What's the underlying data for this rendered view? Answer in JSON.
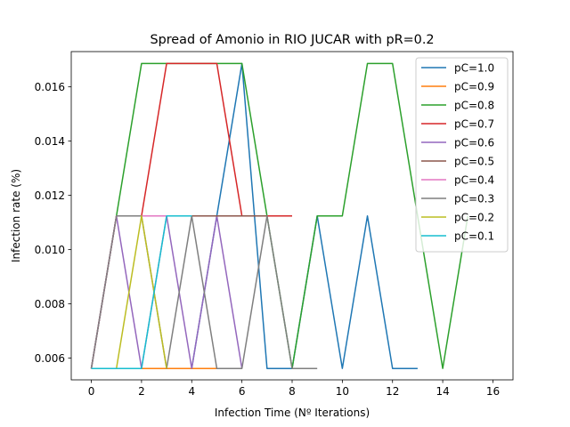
{
  "chart_data": {
    "type": "line",
    "title": "Spread of Amonio in RIO JUCAR with pR=0.2",
    "xlabel": "Infection Time (Nº Iterations)",
    "ylabel": "Infection rate (%)",
    "xlim": [
      -0.8,
      16.8
    ],
    "ylim": [
      0.0052,
      0.0173
    ],
    "xticks": [
      0,
      2,
      4,
      6,
      8,
      10,
      12,
      14,
      16
    ],
    "yticks": [
      0.006,
      0.008,
      0.01,
      0.012,
      0.014,
      0.016
    ],
    "ytick_labels": [
      "0.006",
      "0.008",
      "0.010",
      "0.012",
      "0.014",
      "0.016"
    ],
    "grid": false,
    "legend_position": "upper-right",
    "series": [
      {
        "name": "pC=1.0",
        "color": "#1f77b4",
        "x": [
          0,
          1,
          2,
          3,
          4,
          5,
          6,
          7,
          8,
          9,
          10,
          11,
          12,
          13
        ],
        "y": [
          0.00562,
          0.00562,
          0.00562,
          0.00562,
          0.00562,
          0.01124,
          0.01686,
          0.00562,
          0.00562,
          0.01124,
          0.00562,
          0.01124,
          0.00562,
          0.00562
        ]
      },
      {
        "name": "pC=0.9",
        "color": "#ff7f0e",
        "x": [
          0,
          1,
          2,
          3,
          4,
          5,
          6
        ],
        "y": [
          0.00562,
          0.00562,
          0.00562,
          0.00562,
          0.00562,
          0.00562,
          0.00562
        ]
      },
      {
        "name": "pC=0.8",
        "color": "#2ca02c",
        "x": [
          0,
          1,
          2,
          3,
          4,
          5,
          6,
          7,
          8,
          9,
          10,
          11,
          12,
          13,
          14,
          15
        ],
        "y": [
          0.00562,
          0.01124,
          0.01686,
          0.01686,
          0.01686,
          0.01686,
          0.01686,
          0.01124,
          0.00562,
          0.01124,
          0.01124,
          0.01686,
          0.01686,
          0.01124,
          0.00562,
          0.01124
        ]
      },
      {
        "name": "pC=0.7",
        "color": "#d62728",
        "x": [
          0,
          1,
          2,
          3,
          4,
          5,
          6,
          7,
          8
        ],
        "y": [
          0.00562,
          0.01124,
          0.01124,
          0.01686,
          0.01686,
          0.01686,
          0.01124,
          0.01124,
          0.01124
        ]
      },
      {
        "name": "pC=0.6",
        "color": "#9467bd",
        "x": [
          0,
          1,
          2,
          3,
          4,
          5,
          6
        ],
        "y": [
          0.00562,
          0.01124,
          0.00562,
          0.01124,
          0.00562,
          0.01124,
          0.00562
        ]
      },
      {
        "name": "pC=0.5",
        "color": "#8c564b",
        "x": [
          0,
          1,
          2,
          3,
          4,
          5,
          6,
          7
        ],
        "y": [
          0.00562,
          0.01124,
          0.01124,
          0.01124,
          0.01124,
          0.01124,
          0.01124,
          0.01124
        ]
      },
      {
        "name": "pC=0.4",
        "color": "#e377c2",
        "x": [
          0,
          1,
          2,
          3,
          4
        ],
        "y": [
          0.00562,
          0.01124,
          0.01124,
          0.01124,
          0.01124
        ]
      },
      {
        "name": "pC=0.3",
        "color": "#7f7f7f",
        "x": [
          0,
          1,
          2,
          3,
          4,
          5,
          6,
          7,
          8,
          9
        ],
        "y": [
          0.00562,
          0.01124,
          0.01124,
          0.00562,
          0.01124,
          0.00562,
          0.00562,
          0.01124,
          0.00562,
          0.00562
        ]
      },
      {
        "name": "pC=0.2",
        "color": "#bcbd22",
        "x": [
          0,
          1,
          2,
          3
        ],
        "y": [
          0.00562,
          0.00562,
          0.01124,
          0.00562
        ]
      },
      {
        "name": "pC=0.1",
        "color": "#17becf",
        "x": [
          0,
          1,
          2,
          3,
          4
        ],
        "y": [
          0.00562,
          0.00562,
          0.00562,
          0.01124,
          0.01124
        ]
      }
    ]
  }
}
